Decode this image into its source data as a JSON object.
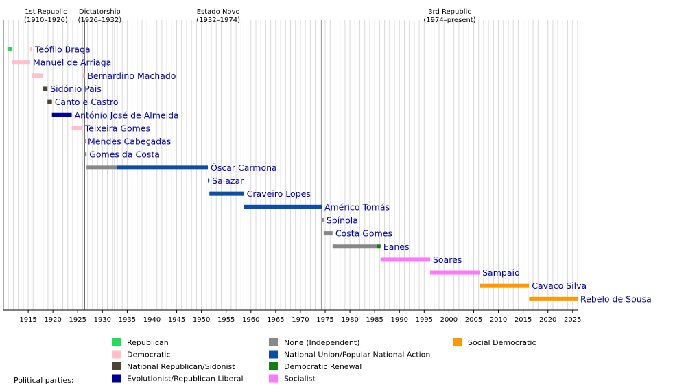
{
  "chart_data": {
    "type": "timeline",
    "x_range": [
      1910,
      2026
    ],
    "x_ticks": [
      1915,
      1920,
      1925,
      1930,
      1935,
      1940,
      1945,
      1950,
      1955,
      1960,
      1965,
      1970,
      1975,
      1980,
      1985,
      1990,
      1995,
      2000,
      2005,
      2010,
      2015,
      2020,
      2025
    ],
    "eras": [
      {
        "name": "1st Republic",
        "dates": "(1910–1926)",
        "start": 1910.75,
        "end": 1926.4
      },
      {
        "name": "Dictatorship",
        "dates": "(1926–1932)",
        "start": 1926.4,
        "end": 1932.5
      },
      {
        "name": "Estado Novo",
        "dates": "(1932–1974)",
        "start": 1932.5,
        "end": 1974.3
      },
      {
        "name": "3rd Republic",
        "dates": "(1974–present)",
        "start": 1974.3,
        "end": 2026
      }
    ],
    "presidents": [
      {
        "name": "Teófilo Braga",
        "segments": [
          {
            "start": 1910.8,
            "end": 1911.7,
            "party": "republican"
          },
          {
            "start": 1915.4,
            "end": 1915.8,
            "party": "democratic"
          }
        ]
      },
      {
        "name": "Manuel de Arriaga",
        "segments": [
          {
            "start": 1911.7,
            "end": 1915.4,
            "party": "democratic"
          }
        ]
      },
      {
        "name": "Bernardino Machado",
        "segments": [
          {
            "start": 1915.8,
            "end": 1918.0,
            "party": "democratic"
          },
          {
            "start": 1925.9,
            "end": 1926.4,
            "party": "democratic"
          }
        ]
      },
      {
        "name": "Sidónio Pais",
        "segments": [
          {
            "start": 1918.0,
            "end": 1918.9,
            "party": "national_republican"
          }
        ]
      },
      {
        "name": "Canto e Castro",
        "segments": [
          {
            "start": 1918.9,
            "end": 1919.8,
            "party": "national_republican"
          }
        ]
      },
      {
        "name": "António José de Almeida",
        "segments": [
          {
            "start": 1919.8,
            "end": 1923.8,
            "party": "evolutionist"
          }
        ]
      },
      {
        "name": "Teixeira Gomes",
        "segments": [
          {
            "start": 1923.8,
            "end": 1925.9,
            "party": "democratic"
          }
        ]
      },
      {
        "name": "Mendes Cabeçadas",
        "segments": [
          {
            "start": 1926.4,
            "end": 1926.5,
            "party": "none"
          }
        ]
      },
      {
        "name": "Gomes da Costa",
        "segments": [
          {
            "start": 1926.5,
            "end": 1926.8,
            "party": "none"
          }
        ]
      },
      {
        "name": "Óscar Carmona",
        "segments": [
          {
            "start": 1926.8,
            "end": 1932.9,
            "party": "none"
          },
          {
            "start": 1932.9,
            "end": 1951.3,
            "party": "national_union"
          }
        ]
      },
      {
        "name": "Salazar",
        "segments": [
          {
            "start": 1951.3,
            "end": 1951.6,
            "party": "national_union"
          }
        ]
      },
      {
        "name": "Craveiro Lopes",
        "segments": [
          {
            "start": 1951.6,
            "end": 1958.6,
            "party": "national_union"
          }
        ]
      },
      {
        "name": "Américo Tomás",
        "segments": [
          {
            "start": 1958.6,
            "end": 1974.3,
            "party": "national_union"
          }
        ]
      },
      {
        "name": "Spínola",
        "segments": [
          {
            "start": 1974.3,
            "end": 1974.7,
            "party": "none"
          }
        ]
      },
      {
        "name": "Costa Gomes",
        "segments": [
          {
            "start": 1974.7,
            "end": 1976.5,
            "party": "none"
          }
        ]
      },
      {
        "name": "Eanes",
        "segments": [
          {
            "start": 1976.5,
            "end": 1985.5,
            "party": "none"
          },
          {
            "start": 1985.5,
            "end": 1986.2,
            "party": "democratic_renewal"
          }
        ]
      },
      {
        "name": "Soares",
        "segments": [
          {
            "start": 1986.2,
            "end": 1996.2,
            "party": "socialist"
          }
        ]
      },
      {
        "name": "Sampaio",
        "segments": [
          {
            "start": 1996.2,
            "end": 2006.2,
            "party": "socialist"
          }
        ]
      },
      {
        "name": "Cavaco Silva",
        "segments": [
          {
            "start": 2006.2,
            "end": 2016.2,
            "party": "social_democratic"
          }
        ]
      },
      {
        "name": "Rebelo de Sousa",
        "segments": [
          {
            "start": 2016.2,
            "end": 2026,
            "party": "social_democratic"
          }
        ]
      }
    ],
    "legend_title": "Political parties:",
    "legend": [
      {
        "key": "republican",
        "label": "Republican",
        "color": "#22dd55"
      },
      {
        "key": "democratic",
        "label": "Democratic",
        "color": "#ffc0cb"
      },
      {
        "key": "national_republican",
        "label": "National Republican/Sidonist",
        "color": "#4d4333"
      },
      {
        "key": "evolutionist",
        "label": "Evolutionist/Republican Liberal",
        "color": "#000099"
      },
      {
        "key": "none",
        "label": "None (Independent)",
        "color": "#888888"
      },
      {
        "key": "national_union",
        "label": "National Union/Popular National Action",
        "color": "#0a4ea8"
      },
      {
        "key": "democratic_renewal",
        "label": "Democratic Renewal",
        "color": "#108010"
      },
      {
        "key": "socialist",
        "label": "Socialist",
        "color": "#ff77ff"
      },
      {
        "key": "social_democratic",
        "label": "Social Democratic",
        "color": "#ff9900"
      }
    ]
  }
}
